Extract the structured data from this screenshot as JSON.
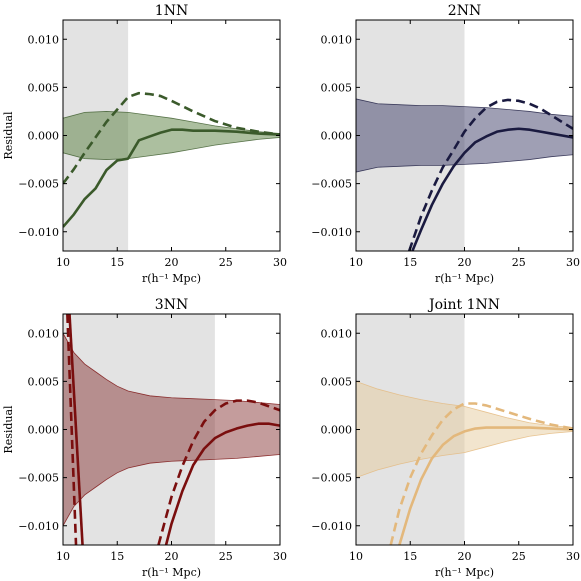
{
  "chart_data": [
    {
      "type": "line",
      "title": "1NN",
      "xlabel": "r(h⁻¹ Mpc)",
      "ylabel": "Residual",
      "xlim": [
        10,
        30
      ],
      "ylim": [
        -0.012,
        0.012
      ],
      "xticks": [
        "10",
        "15",
        "20",
        "25",
        "30"
      ],
      "yticks": [
        "−0.010",
        "−0.005",
        "0.000",
        "0.005",
        "0.010"
      ],
      "shade_x": [
        10,
        16
      ],
      "color": "#3b5a2b",
      "band_color": "#5a8040",
      "band": {
        "x": [
          10,
          12,
          14,
          16,
          18,
          20,
          22,
          24,
          26,
          28,
          30
        ],
        "lower": [
          -0.0018,
          -0.0024,
          -0.0025,
          -0.0024,
          -0.0021,
          -0.0018,
          -0.0014,
          -0.001,
          -0.0007,
          -0.0004,
          -0.0002
        ],
        "upper": [
          0.0018,
          0.0024,
          0.0025,
          0.0024,
          0.0021,
          0.0018,
          0.0014,
          0.001,
          0.0007,
          0.0004,
          0.0002
        ]
      },
      "series": [
        {
          "style": "solid",
          "x": [
            10,
            11,
            12,
            13,
            14,
            15,
            16,
            17,
            18,
            19,
            20,
            21,
            22,
            24,
            26,
            28,
            30
          ],
          "y": [
            -0.0095,
            -0.0082,
            -0.0066,
            -0.0055,
            -0.0036,
            -0.0026,
            -0.0024,
            -0.0005,
            -0.0001,
            0.0003,
            0.0006,
            0.0006,
            0.0005,
            0.0005,
            0.0004,
            0.0002,
            0.0001
          ]
        },
        {
          "style": "dashed",
          "x": [
            10,
            11,
            12,
            13,
            14,
            15,
            16,
            17,
            18,
            19,
            20,
            22,
            24,
            26,
            28,
            30
          ],
          "y": [
            -0.005,
            -0.0035,
            -0.0018,
            -0.0002,
            0.0014,
            0.0027,
            0.004,
            0.0044,
            0.0043,
            0.0041,
            0.0036,
            0.0025,
            0.0015,
            0.0008,
            0.0004,
            0.0001
          ]
        }
      ]
    },
    {
      "type": "line",
      "title": "2NN",
      "xlabel": "r(h⁻¹ Mpc)",
      "ylabel": "",
      "xlim": [
        10,
        30
      ],
      "ylim": [
        -0.012,
        0.012
      ],
      "xticks": [
        "10",
        "15",
        "20",
        "25",
        "30"
      ],
      "yticks": [
        "−0.010",
        "−0.005",
        "0.000",
        "0.005",
        "0.010"
      ],
      "shade_x": [
        10,
        20
      ],
      "color": "#1a1a40",
      "band_color": "#40406a",
      "band": {
        "x": [
          10,
          12,
          14,
          16,
          18,
          20,
          22,
          24,
          26,
          28,
          30
        ],
        "lower": [
          -0.0038,
          -0.0033,
          -0.0032,
          -0.0031,
          -0.0031,
          -0.003,
          -0.0029,
          -0.0027,
          -0.0025,
          -0.0022,
          -0.002
        ],
        "upper": [
          0.0038,
          0.0033,
          0.0032,
          0.0031,
          0.0031,
          0.003,
          0.0029,
          0.0027,
          0.0025,
          0.0022,
          0.002
        ]
      },
      "series": [
        {
          "style": "solid",
          "x": [
            15.2,
            16,
            17,
            18,
            19,
            20,
            21,
            22,
            23,
            24,
            25,
            26,
            27,
            28,
            29,
            30
          ],
          "y": [
            -0.012,
            -0.0098,
            -0.0072,
            -0.005,
            -0.0032,
            -0.0018,
            -0.0007,
            -0.0001,
            0.0004,
            0.0006,
            0.0007,
            0.0006,
            0.0004,
            0.0002,
            0.0,
            -0.0002
          ]
        },
        {
          "style": "dashed",
          "x": [
            14.9,
            16,
            17,
            18,
            19,
            20,
            21,
            22,
            23,
            24,
            25,
            26,
            27,
            28,
            29,
            30
          ],
          "y": [
            -0.012,
            -0.0084,
            -0.0057,
            -0.0033,
            -0.0015,
            0.0004,
            0.0018,
            0.0029,
            0.0035,
            0.0037,
            0.0036,
            0.0033,
            0.0028,
            0.0021,
            0.0014,
            0.0007
          ]
        }
      ]
    },
    {
      "type": "line",
      "title": "3NN",
      "xlabel": "r(h⁻¹ Mpc)",
      "ylabel": "Residual",
      "xlim": [
        10,
        30
      ],
      "ylim": [
        -0.012,
        0.012
      ],
      "xticks": [
        "10",
        "15",
        "20",
        "25",
        "30"
      ],
      "yticks": [
        "−0.010",
        "−0.005",
        "0.000",
        "0.005",
        "0.010"
      ],
      "shade_x": [
        10,
        24
      ],
      "color": "#7a0e0e",
      "band_color": "#8a3a3a",
      "band": {
        "x": [
          10,
          11,
          12,
          13,
          14,
          15,
          16,
          18,
          20,
          22,
          24,
          26,
          28,
          30
        ],
        "lower": [
          -0.01,
          -0.008,
          -0.0068,
          -0.006,
          -0.0052,
          -0.0045,
          -0.004,
          -0.0035,
          -0.0033,
          -0.0032,
          -0.0031,
          -0.003,
          -0.0028,
          -0.0026
        ],
        "upper": [
          0.01,
          0.008,
          0.0068,
          0.006,
          0.0052,
          0.0045,
          0.004,
          0.0035,
          0.0033,
          0.0032,
          0.0031,
          0.003,
          0.0028,
          0.0026
        ]
      },
      "series": [
        {
          "style": "solid",
          "x": [
            10.6,
            11.8
          ],
          "y": [
            0.012,
            -0.012
          ]
        },
        {
          "style": "solid",
          "x": [
            19.5,
            20,
            21,
            22,
            23,
            24,
            25,
            26,
            27,
            28,
            29,
            30
          ],
          "y": [
            -0.012,
            -0.0098,
            -0.0064,
            -0.0037,
            -0.002,
            -0.0009,
            -0.0003,
            0.0001,
            0.0004,
            0.0006,
            0.0006,
            0.0004
          ]
        },
        {
          "style": "dashed",
          "x": [
            10.4,
            11.2
          ],
          "y": [
            0.012,
            -0.012
          ]
        },
        {
          "style": "dashed",
          "x": [
            18.8,
            20,
            21,
            22,
            23,
            24,
            25,
            26,
            27,
            28,
            29,
            30
          ],
          "y": [
            -0.012,
            -0.007,
            -0.0038,
            -0.0012,
            0.0008,
            0.002,
            0.0027,
            0.003,
            0.003,
            0.0028,
            0.0024,
            0.002
          ]
        }
      ]
    },
    {
      "type": "line",
      "title": "Joint 1NN",
      "xlabel": "r(h⁻¹ Mpc)",
      "ylabel": "",
      "xlim": [
        10,
        30
      ],
      "ylim": [
        -0.012,
        0.012
      ],
      "xticks": [
        "10",
        "15",
        "20",
        "25",
        "30"
      ],
      "yticks": [
        "−0.010",
        "−0.005",
        "0.000",
        "0.005",
        "0.010"
      ],
      "shade_x": [
        10,
        20
      ],
      "color": "#e3b87c",
      "band_color": "#e6cc9e",
      "band": {
        "x": [
          10,
          12,
          14,
          16,
          18,
          20,
          22,
          24,
          26,
          28,
          30
        ],
        "lower": [
          -0.005,
          -0.0042,
          -0.0036,
          -0.0031,
          -0.0027,
          -0.0024,
          -0.0018,
          -0.0012,
          -0.0007,
          -0.0004,
          -0.0002
        ],
        "upper": [
          0.005,
          0.0042,
          0.0036,
          0.0031,
          0.0027,
          0.0024,
          0.0018,
          0.0012,
          0.0007,
          0.0004,
          0.0002
        ]
      },
      "series": [
        {
          "style": "solid",
          "x": [
            14,
            15,
            16,
            17,
            18,
            19,
            20,
            21,
            22,
            24,
            26,
            28,
            30
          ],
          "y": [
            -0.012,
            -0.0082,
            -0.0052,
            -0.003,
            -0.0016,
            -0.0007,
            -0.0002,
            0.0001,
            0.0002,
            0.0002,
            0.0002,
            0.0001,
            0.0
          ]
        },
        {
          "style": "dashed",
          "x": [
            13.2,
            14,
            15,
            16,
            17,
            18,
            19,
            20,
            21,
            22,
            24,
            26,
            28,
            30
          ],
          "y": [
            -0.012,
            -0.0083,
            -0.005,
            -0.0025,
            -0.0006,
            0.001,
            0.0021,
            0.0027,
            0.0027,
            0.0025,
            0.0018,
            0.0011,
            0.0005,
            0.0001
          ]
        }
      ]
    }
  ]
}
